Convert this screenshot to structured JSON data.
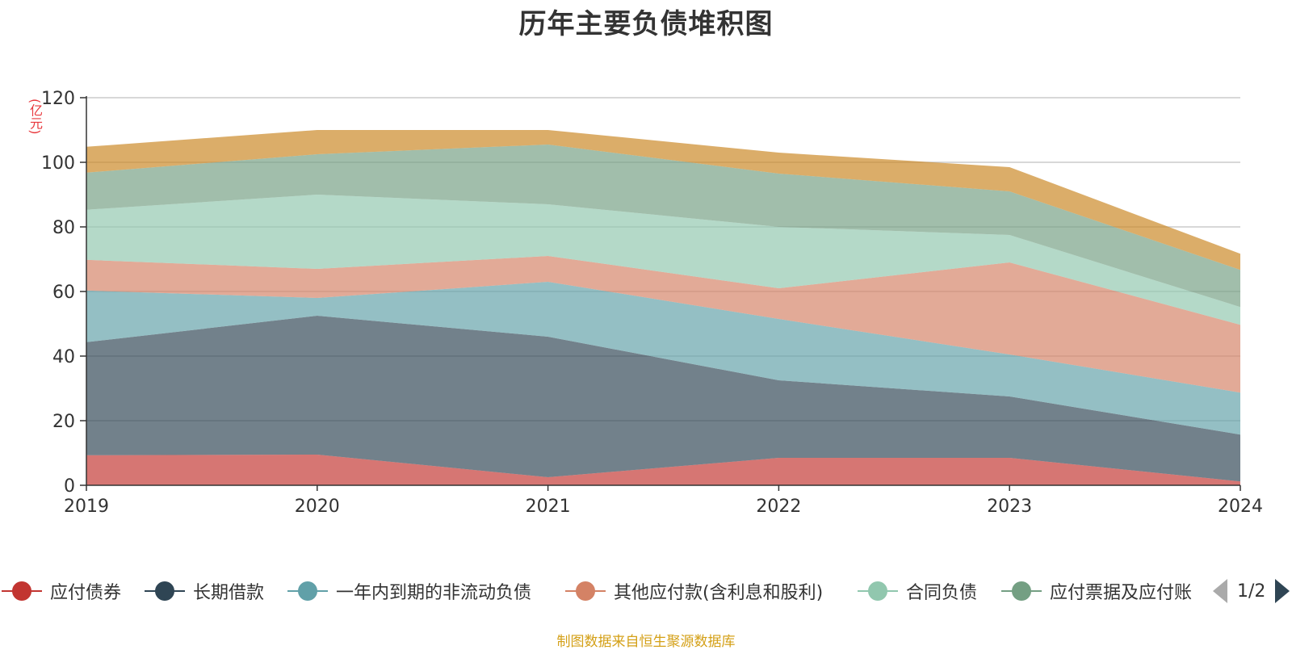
{
  "chart_data": {
    "type": "area",
    "stacked": true,
    "title": "历年主要负债堆积图",
    "unit_label": "(亿元)",
    "x": [
      "2019",
      "2020",
      "2021",
      "2022",
      "2023",
      "2024"
    ],
    "ylim": [
      0,
      120
    ],
    "yticks": [
      0,
      20,
      40,
      60,
      80,
      100,
      120
    ],
    "grid": true,
    "legend_position": "bottom",
    "series": [
      {
        "name": "应付债券",
        "color": "#c23531",
        "values": [
          9.3,
          9.5,
          2.5,
          8.5,
          8.5,
          1.2
        ]
      },
      {
        "name": "长期借款",
        "color": "#2f4554",
        "values": [
          35.0,
          43.0,
          43.5,
          24.0,
          19.0,
          14.5
        ]
      },
      {
        "name": "一年内到期的非流动负债",
        "color": "#61a0a8",
        "values": [
          16.0,
          5.5,
          17.0,
          19.0,
          13.0,
          13.0
        ]
      },
      {
        "name": "其他应付款(含利息和股利)",
        "color": "#d48265",
        "values": [
          9.5,
          9.0,
          8.0,
          9.5,
          28.5,
          21.0
        ]
      },
      {
        "name": "合同负债",
        "color": "#91c7ae",
        "values": [
          15.5,
          23.0,
          16.0,
          19.0,
          8.5,
          5.5
        ]
      },
      {
        "name": "应付票据及应付账款",
        "color": "#749f83",
        "values": [
          11.5,
          12.5,
          18.5,
          16.5,
          13.5,
          11.5
        ]
      },
      {
        "name": "",
        "color": "#ca8622",
        "values": [
          8.0,
          7.5,
          4.5,
          6.5,
          7.5,
          5.0
        ]
      }
    ]
  },
  "legend": {
    "items": [
      {
        "label": "应付债券",
        "color": "#c23531"
      },
      {
        "label": "长期借款",
        "color": "#2f4554"
      },
      {
        "label": "一年内到期的非流动负债",
        "color": "#61a0a8"
      },
      {
        "label": "其他应付款(含利息和股利)",
        "color": "#d48265"
      },
      {
        "label": "合同负债",
        "color": "#91c7ae"
      },
      {
        "label": "应付票据及应付账",
        "color": "#749f83"
      }
    ],
    "page_text": "1/2"
  },
  "source_text": "制图数据来自恒生聚源数据库"
}
